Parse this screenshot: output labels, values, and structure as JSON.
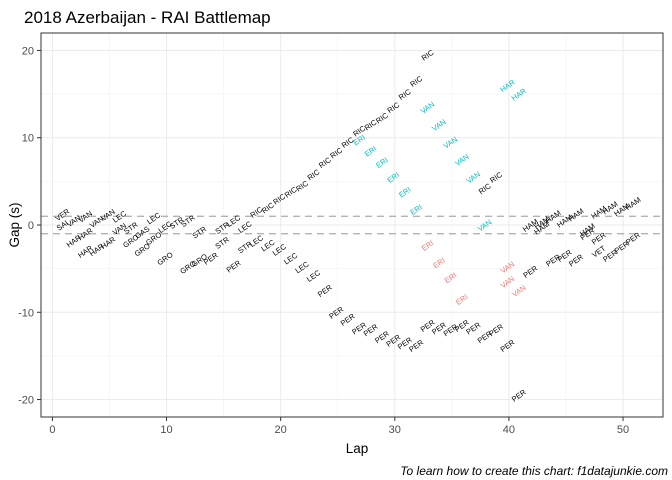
{
  "chart_data": {
    "type": "scatter",
    "title": "2018 Azerbaijan - RAI Battlemap",
    "xlabel": "Lap",
    "ylabel": "Gap (s)",
    "caption": "To learn how to create this chart: f1datajunkie.com",
    "xlim": [
      -1,
      53.5
    ],
    "ylim": [
      -22,
      22
    ],
    "x_ticks": [
      0,
      10,
      20,
      30,
      40,
      50
    ],
    "y_ticks": [
      -20,
      -10,
      0,
      10,
      20
    ],
    "grid": true,
    "reference_lines": [
      1,
      -1
    ],
    "label_colors": {
      "neutral": "#000000",
      "ahead": "#00bfc4",
      "behind": "#f8766d"
    },
    "points": [
      {
        "lap": 1,
        "gap": 1.2,
        "label": "VER",
        "tone": "neutral"
      },
      {
        "lap": 1,
        "gap": 0.0,
        "label": "SAI",
        "tone": "neutral"
      },
      {
        "lap": 2,
        "gap": -1.8,
        "label": "HAR",
        "tone": "neutral"
      },
      {
        "lap": 2,
        "gap": 0.5,
        "label": "VAN",
        "tone": "neutral"
      },
      {
        "lap": 3,
        "gap": -1.0,
        "label": "HAR",
        "tone": "neutral"
      },
      {
        "lap": 3,
        "gap": -3.0,
        "label": "HAR",
        "tone": "neutral"
      },
      {
        "lap": 3,
        "gap": 1.0,
        "label": "VAN",
        "tone": "neutral"
      },
      {
        "lap": 4,
        "gap": 0.4,
        "label": "VAN",
        "tone": "neutral"
      },
      {
        "lap": 4,
        "gap": -2.8,
        "label": "HAR",
        "tone": "neutral"
      },
      {
        "lap": 5,
        "gap": -2.0,
        "label": "HAR",
        "tone": "neutral"
      },
      {
        "lap": 5,
        "gap": 1.2,
        "label": "VAN",
        "tone": "neutral"
      },
      {
        "lap": 6,
        "gap": -0.4,
        "label": "VAN",
        "tone": "neutral"
      },
      {
        "lap": 6,
        "gap": 1.0,
        "label": "LEC",
        "tone": "neutral"
      },
      {
        "lap": 7,
        "gap": -0.3,
        "label": "STR",
        "tone": "neutral"
      },
      {
        "lap": 7,
        "gap": -1.8,
        "label": "GRO",
        "tone": "neutral"
      },
      {
        "lap": 8,
        "gap": -0.8,
        "label": "GAS",
        "tone": "neutral"
      },
      {
        "lap": 8,
        "gap": -2.8,
        "label": "GRO",
        "tone": "neutral"
      },
      {
        "lap": 9,
        "gap": -1.5,
        "label": "GRO",
        "tone": "neutral"
      },
      {
        "lap": 9,
        "gap": 0.8,
        "label": "LEC",
        "tone": "neutral"
      },
      {
        "lap": 10,
        "gap": -3.8,
        "label": "GRO",
        "tone": "neutral"
      },
      {
        "lap": 10,
        "gap": -0.2,
        "label": "LEC",
        "tone": "neutral"
      },
      {
        "lap": 11,
        "gap": 0.3,
        "label": "STR",
        "tone": "neutral"
      },
      {
        "lap": 12,
        "gap": -4.8,
        "label": "GRO",
        "tone": "neutral"
      },
      {
        "lap": 12,
        "gap": 0.5,
        "label": "STR",
        "tone": "neutral"
      },
      {
        "lap": 13,
        "gap": -4.0,
        "label": "GRO",
        "tone": "neutral"
      },
      {
        "lap": 13,
        "gap": -0.8,
        "label": "STR",
        "tone": "neutral"
      },
      {
        "lap": 14,
        "gap": -3.8,
        "label": "PER",
        "tone": "neutral"
      },
      {
        "lap": 15,
        "gap": -0.3,
        "label": "STR",
        "tone": "neutral"
      },
      {
        "lap": 15,
        "gap": -2.0,
        "label": "STR",
        "tone": "neutral"
      },
      {
        "lap": 16,
        "gap": 0.5,
        "label": "LEC",
        "tone": "neutral"
      },
      {
        "lap": 16,
        "gap": -4.7,
        "label": "PER",
        "tone": "neutral"
      },
      {
        "lap": 17,
        "gap": -2.5,
        "label": "STR",
        "tone": "neutral"
      },
      {
        "lap": 17,
        "gap": -0.2,
        "label": "LEC",
        "tone": "neutral"
      },
      {
        "lap": 18,
        "gap": -1.8,
        "label": "LEC",
        "tone": "neutral"
      },
      {
        "lap": 18,
        "gap": 1.5,
        "label": "RIC",
        "tone": "neutral"
      },
      {
        "lap": 19,
        "gap": 2.0,
        "label": "RIC",
        "tone": "neutral"
      },
      {
        "lap": 19,
        "gap": -2.3,
        "label": "LEC",
        "tone": "neutral"
      },
      {
        "lap": 20,
        "gap": -2.8,
        "label": "LEC",
        "tone": "neutral"
      },
      {
        "lap": 20,
        "gap": 3.0,
        "label": "RIC",
        "tone": "neutral"
      },
      {
        "lap": 21,
        "gap": 3.8,
        "label": "RIC",
        "tone": "neutral"
      },
      {
        "lap": 21,
        "gap": -3.8,
        "label": "LEC",
        "tone": "neutral"
      },
      {
        "lap": 22,
        "gap": 4.5,
        "label": "RIC",
        "tone": "neutral"
      },
      {
        "lap": 22,
        "gap": -4.8,
        "label": "LEC",
        "tone": "neutral"
      },
      {
        "lap": 23,
        "gap": 5.8,
        "label": "RIC",
        "tone": "neutral"
      },
      {
        "lap": 23,
        "gap": -5.8,
        "label": "LEC",
        "tone": "neutral"
      },
      {
        "lap": 24,
        "gap": 7.2,
        "label": "RIC",
        "tone": "neutral"
      },
      {
        "lap": 24,
        "gap": -7.5,
        "label": "PER",
        "tone": "neutral"
      },
      {
        "lap": 25,
        "gap": 8.3,
        "label": "RIC",
        "tone": "neutral"
      },
      {
        "lap": 25,
        "gap": -10.0,
        "label": "PER",
        "tone": "neutral"
      },
      {
        "lap": 26,
        "gap": 9.5,
        "label": "RIC",
        "tone": "neutral"
      },
      {
        "lap": 26,
        "gap": -10.8,
        "label": "PER",
        "tone": "neutral"
      },
      {
        "lap": 27,
        "gap": 10.8,
        "label": "RIC",
        "tone": "neutral"
      },
      {
        "lap": 27,
        "gap": 9.8,
        "label": "ERI",
        "tone": "ahead"
      },
      {
        "lap": 27,
        "gap": -11.8,
        "label": "PER",
        "tone": "neutral"
      },
      {
        "lap": 28,
        "gap": 11.5,
        "label": "RIC",
        "tone": "neutral"
      },
      {
        "lap": 28,
        "gap": 8.5,
        "label": "ERI",
        "tone": "ahead"
      },
      {
        "lap": 28,
        "gap": -12.0,
        "label": "PER",
        "tone": "neutral"
      },
      {
        "lap": 29,
        "gap": 12.3,
        "label": "RIC",
        "tone": "neutral"
      },
      {
        "lap": 29,
        "gap": 7.2,
        "label": "ERI",
        "tone": "ahead"
      },
      {
        "lap": 29,
        "gap": -12.8,
        "label": "PER",
        "tone": "neutral"
      },
      {
        "lap": 30,
        "gap": 13.5,
        "label": "RIC",
        "tone": "neutral"
      },
      {
        "lap": 30,
        "gap": 5.5,
        "label": "ERI",
        "tone": "ahead"
      },
      {
        "lap": 30,
        "gap": -13.2,
        "label": "PER",
        "tone": "neutral"
      },
      {
        "lap": 31,
        "gap": 15.0,
        "label": "RIC",
        "tone": "neutral"
      },
      {
        "lap": 31,
        "gap": 3.8,
        "label": "ERI",
        "tone": "ahead"
      },
      {
        "lap": 31,
        "gap": -13.5,
        "label": "PER",
        "tone": "neutral"
      },
      {
        "lap": 32,
        "gap": 16.5,
        "label": "RIC",
        "tone": "neutral"
      },
      {
        "lap": 32,
        "gap": 1.8,
        "label": "ERI",
        "tone": "ahead"
      },
      {
        "lap": 32,
        "gap": -13.8,
        "label": "PER",
        "tone": "neutral"
      },
      {
        "lap": 33,
        "gap": 19.5,
        "label": "RIC",
        "tone": "neutral"
      },
      {
        "lap": 33,
        "gap": 13.5,
        "label": "VAN",
        "tone": "ahead"
      },
      {
        "lap": 33,
        "gap": -2.3,
        "label": "ERI",
        "tone": "behind"
      },
      {
        "lap": 33,
        "gap": -11.5,
        "label": "PER",
        "tone": "neutral"
      },
      {
        "lap": 34,
        "gap": 11.5,
        "label": "VAN",
        "tone": "ahead"
      },
      {
        "lap": 34,
        "gap": -4.3,
        "label": "ERI",
        "tone": "behind"
      },
      {
        "lap": 34,
        "gap": -11.8,
        "label": "PER",
        "tone": "neutral"
      },
      {
        "lap": 35,
        "gap": 9.5,
        "label": "VAN",
        "tone": "ahead"
      },
      {
        "lap": 35,
        "gap": -6.0,
        "label": "ERI",
        "tone": "behind"
      },
      {
        "lap": 35,
        "gap": -12.0,
        "label": "PER",
        "tone": "neutral"
      },
      {
        "lap": 36,
        "gap": 7.5,
        "label": "VAN",
        "tone": "ahead"
      },
      {
        "lap": 36,
        "gap": -8.5,
        "label": "ERI",
        "tone": "behind"
      },
      {
        "lap": 36,
        "gap": -11.5,
        "label": "PER",
        "tone": "neutral"
      },
      {
        "lap": 37,
        "gap": 5.5,
        "label": "VAN",
        "tone": "ahead"
      },
      {
        "lap": 37,
        "gap": -11.8,
        "label": "PER",
        "tone": "neutral"
      },
      {
        "lap": 38,
        "gap": 4.2,
        "label": "RIC",
        "tone": "neutral"
      },
      {
        "lap": 38,
        "gap": 0.0,
        "label": "VAN",
        "tone": "ahead"
      },
      {
        "lap": 38,
        "gap": -12.8,
        "label": "PER",
        "tone": "neutral"
      },
      {
        "lap": 39,
        "gap": 5.5,
        "label": "RIC",
        "tone": "neutral"
      },
      {
        "lap": 39,
        "gap": -12.0,
        "label": "PER",
        "tone": "neutral"
      },
      {
        "lap": 40,
        "gap": -4.8,
        "label": "VAN",
        "tone": "behind"
      },
      {
        "lap": 40,
        "gap": -13.8,
        "label": "PER",
        "tone": "neutral"
      },
      {
        "lap": 40,
        "gap": 16.0,
        "label": "HAR",
        "tone": "ahead"
      },
      {
        "lap": 40,
        "gap": -6.5,
        "label": "VAN",
        "tone": "behind"
      },
      {
        "lap": 41,
        "gap": 15.0,
        "label": "HAR",
        "tone": "ahead"
      },
      {
        "lap": 41,
        "gap": -7.5,
        "label": "VAN",
        "tone": "behind"
      },
      {
        "lap": 41,
        "gap": -19.5,
        "label": "PER",
        "tone": "neutral"
      },
      {
        "lap": 42,
        "gap": -5.3,
        "label": "PER",
        "tone": "neutral"
      },
      {
        "lap": 42,
        "gap": 0.0,
        "label": "HAM",
        "tone": "neutral"
      },
      {
        "lap": 43,
        "gap": 0.3,
        "label": "HAM",
        "tone": "neutral"
      },
      {
        "lap": 43,
        "gap": -0.3,
        "label": "HAM",
        "tone": "neutral"
      },
      {
        "lap": 44,
        "gap": -4.0,
        "label": "PER",
        "tone": "neutral"
      },
      {
        "lap": 44,
        "gap": 1.0,
        "label": "HAM",
        "tone": "neutral"
      },
      {
        "lap": 45,
        "gap": -3.5,
        "label": "PER",
        "tone": "neutral"
      },
      {
        "lap": 45,
        "gap": 0.5,
        "label": "HAM",
        "tone": "neutral"
      },
      {
        "lap": 46,
        "gap": -4.0,
        "label": "PER",
        "tone": "neutral"
      },
      {
        "lap": 46,
        "gap": 1.2,
        "label": "HAM",
        "tone": "neutral"
      },
      {
        "lap": 47,
        "gap": -1.0,
        "label": "PER",
        "tone": "neutral"
      },
      {
        "lap": 47,
        "gap": -0.5,
        "label": "HAM",
        "tone": "neutral"
      },
      {
        "lap": 48,
        "gap": -1.5,
        "label": "PER",
        "tone": "neutral"
      },
      {
        "lap": 48,
        "gap": 1.5,
        "label": "HAM",
        "tone": "neutral"
      },
      {
        "lap": 48,
        "gap": -3.0,
        "label": "VET",
        "tone": "neutral"
      },
      {
        "lap": 49,
        "gap": 2.0,
        "label": "HAM",
        "tone": "neutral"
      },
      {
        "lap": 49,
        "gap": -3.5,
        "label": "PER",
        "tone": "neutral"
      },
      {
        "lap": 50,
        "gap": 1.8,
        "label": "HAM",
        "tone": "neutral"
      },
      {
        "lap": 50,
        "gap": -2.5,
        "label": "PER",
        "tone": "neutral"
      },
      {
        "lap": 51,
        "gap": 2.5,
        "label": "HAM",
        "tone": "neutral"
      },
      {
        "lap": 51,
        "gap": -1.5,
        "label": "PER",
        "tone": "neutral"
      }
    ]
  }
}
